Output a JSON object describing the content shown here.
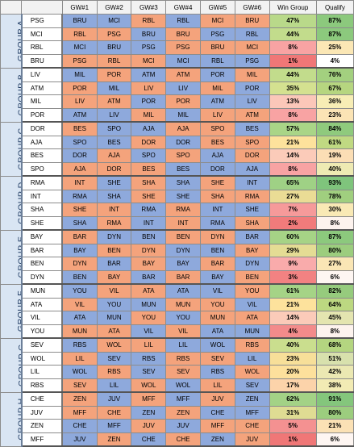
{
  "headers": [
    "GW#1",
    "GW#2",
    "GW#3",
    "GW#4",
    "GW#5",
    "GW#6",
    "Win Group",
    "Qualify"
  ],
  "colors": {
    "home": "#f4a37c",
    "away": "#8ea9dc",
    "header_bg": "#f2f2f2",
    "group_bg": "#d9e5f3"
  },
  "groups": [
    {
      "label": "GROUP A",
      "rows": [
        {
          "team": "PSG",
          "m": [
            [
              "BRU",
              "A"
            ],
            [
              "MCI",
              "A"
            ],
            [
              "RBL",
              "H"
            ],
            [
              "RBL",
              "A"
            ],
            [
              "MCI",
              "H"
            ],
            [
              "BRU",
              "H"
            ]
          ],
          "win": "47%",
          "win_c": "#b9d98a",
          "qual": "87%",
          "qual_c": "#8cc97d"
        },
        {
          "team": "MCI",
          "m": [
            [
              "RBL",
              "H"
            ],
            [
              "PSG",
              "H"
            ],
            [
              "BRU",
              "A"
            ],
            [
              "BRU",
              "H"
            ],
            [
              "PSG",
              "A"
            ],
            [
              "RBL",
              "A"
            ]
          ],
          "win": "44%",
          "win_c": "#c2dc8c",
          "qual": "87%",
          "qual_c": "#8cc97d"
        },
        {
          "team": "RBL",
          "m": [
            [
              "MCI",
              "A"
            ],
            [
              "BRU",
              "A"
            ],
            [
              "PSG",
              "A"
            ],
            [
              "PSG",
              "H"
            ],
            [
              "BRU",
              "H"
            ],
            [
              "MCI",
              "H"
            ]
          ],
          "win": "8%",
          "win_c": "#f8a3a3",
          "qual": "25%",
          "qual_c": "#fbe7b5"
        },
        {
          "team": "BRU",
          "m": [
            [
              "PSG",
              "H"
            ],
            [
              "RBL",
              "H"
            ],
            [
              "MCI",
              "H"
            ],
            [
              "MCI",
              "A"
            ],
            [
              "RBL",
              "A"
            ],
            [
              "PSG",
              "A"
            ]
          ],
          "win": "1%",
          "win_c": "#f07777",
          "qual": "4%",
          "qual_c": "#ffffff"
        }
      ]
    },
    {
      "label": "GROUP B",
      "rows": [
        {
          "team": "LIV",
          "m": [
            [
              "MIL",
              "A"
            ],
            [
              "POR",
              "H"
            ],
            [
              "ATM",
              "A"
            ],
            [
              "ATM",
              "H"
            ],
            [
              "POR",
              "A"
            ],
            [
              "MIL",
              "H"
            ]
          ],
          "win": "44%",
          "win_c": "#c2dc8c",
          "qual": "76%",
          "qual_c": "#a3d07f"
        },
        {
          "team": "ATM",
          "m": [
            [
              "POR",
              "H"
            ],
            [
              "MIL",
              "A"
            ],
            [
              "LIV",
              "H"
            ],
            [
              "LIV",
              "A"
            ],
            [
              "MIL",
              "H"
            ],
            [
              "POR",
              "A"
            ]
          ],
          "win": "35%",
          "win_c": "#d4e190",
          "qual": "67%",
          "qual_c": "#b6d680"
        },
        {
          "team": "MIL",
          "m": [
            [
              "LIV",
              "H"
            ],
            [
              "ATM",
              "H"
            ],
            [
              "POR",
              "A"
            ],
            [
              "POR",
              "H"
            ],
            [
              "ATM",
              "A"
            ],
            [
              "LIV",
              "A"
            ]
          ],
          "win": "13%",
          "win_c": "#fbc7b9",
          "qual": "36%",
          "qual_c": "#f7edb5"
        },
        {
          "team": "POR",
          "m": [
            [
              "ATM",
              "A"
            ],
            [
              "LIV",
              "A"
            ],
            [
              "MIL",
              "H"
            ],
            [
              "MIL",
              "A"
            ],
            [
              "LIV",
              "H"
            ],
            [
              "ATM",
              "H"
            ]
          ],
          "win": "8%",
          "win_c": "#f8a3a3",
          "qual": "23%",
          "qual_c": "#fbe4b5"
        }
      ]
    },
    {
      "label": "GROUP C",
      "rows": [
        {
          "team": "DOR",
          "m": [
            [
              "BES",
              "H"
            ],
            [
              "SPO",
              "A"
            ],
            [
              "AJA",
              "A"
            ],
            [
              "AJA",
              "H"
            ],
            [
              "SPO",
              "H"
            ],
            [
              "BES",
              "A"
            ]
          ],
          "win": "57%",
          "win_c": "#a9d587",
          "qual": "84%",
          "qual_c": "#8fca7d"
        },
        {
          "team": "AJA",
          "m": [
            [
              "SPO",
              "A"
            ],
            [
              "BES",
              "A"
            ],
            [
              "DOR",
              "H"
            ],
            [
              "DOR",
              "A"
            ],
            [
              "BES",
              "H"
            ],
            [
              "SPO",
              "H"
            ]
          ],
          "win": "21%",
          "win_c": "#fde29c",
          "qual": "61%",
          "qual_c": "#c0d982"
        },
        {
          "team": "BES",
          "m": [
            [
              "DOR",
              "A"
            ],
            [
              "AJA",
              "H"
            ],
            [
              "SPO",
              "A"
            ],
            [
              "SPO",
              "H"
            ],
            [
              "AJA",
              "A"
            ],
            [
              "DOR",
              "H"
            ]
          ],
          "win": "14%",
          "win_c": "#fbcbb9",
          "qual": "19%",
          "qual_c": "#fbdeb5"
        },
        {
          "team": "SPO",
          "m": [
            [
              "AJA",
              "H"
            ],
            [
              "DOR",
              "H"
            ],
            [
              "BES",
              "H"
            ],
            [
              "BES",
              "A"
            ],
            [
              "DOR",
              "A"
            ],
            [
              "AJA",
              "A"
            ]
          ],
          "win": "8%",
          "win_c": "#f8a3a3",
          "qual": "40%",
          "qual_c": "#eeeab3"
        }
      ]
    },
    {
      "label": "GROUP D",
      "rows": [
        {
          "team": "RMA",
          "m": [
            [
              "INT",
              "H"
            ],
            [
              "SHE",
              "A"
            ],
            [
              "SHA",
              "H"
            ],
            [
              "SHA",
              "A"
            ],
            [
              "SHE",
              "H"
            ],
            [
              "INT",
              "A"
            ]
          ],
          "win": "65%",
          "win_c": "#9fd185",
          "qual": "93%",
          "qual_c": "#7fc47c"
        },
        {
          "team": "INT",
          "m": [
            [
              "RMA",
              "A"
            ],
            [
              "SHA",
              "A"
            ],
            [
              "SHE",
              "H"
            ],
            [
              "SHE",
              "A"
            ],
            [
              "SHA",
              "H"
            ],
            [
              "RMA",
              "H"
            ]
          ],
          "win": "27%",
          "win_c": "#eadc95",
          "qual": "78%",
          "qual_c": "#a0cf7f"
        },
        {
          "team": "SHA",
          "m": [
            [
              "SHE",
              "H"
            ],
            [
              "INT",
              "H"
            ],
            [
              "RMA",
              "A"
            ],
            [
              "RMA",
              "H"
            ],
            [
              "INT",
              "A"
            ],
            [
              "SHE",
              "A"
            ]
          ],
          "win": "7%",
          "win_c": "#f69a9a",
          "qual": "30%",
          "qual_c": "#f9e9b5"
        },
        {
          "team": "SHE",
          "m": [
            [
              "SHA",
              "A"
            ],
            [
              "RMA",
              "H"
            ],
            [
              "INT",
              "A"
            ],
            [
              "INT",
              "H"
            ],
            [
              "RMA",
              "A"
            ],
            [
              "SHA",
              "H"
            ]
          ],
          "win": "2%",
          "win_c": "#f17b7b",
          "qual": "8%",
          "qual_c": "#fdf3ee"
        }
      ]
    },
    {
      "label": "GROUP E",
      "rows": [
        {
          "team": "BAY",
          "m": [
            [
              "BAR",
              "H"
            ],
            [
              "DYN",
              "A"
            ],
            [
              "BEN",
              "A"
            ],
            [
              "BEN",
              "H"
            ],
            [
              "DYN",
              "H"
            ],
            [
              "BAR",
              "A"
            ]
          ],
          "win": "60%",
          "win_c": "#a6d386",
          "qual": "87%",
          "qual_c": "#8cc97d"
        },
        {
          "team": "BAR",
          "m": [
            [
              "BAY",
              "A"
            ],
            [
              "BEN",
              "H"
            ],
            [
              "DYN",
              "H"
            ],
            [
              "DYN",
              "A"
            ],
            [
              "BEN",
              "A"
            ],
            [
              "BAY",
              "H"
            ]
          ],
          "win": "29%",
          "win_c": "#e4dc94",
          "qual": "80%",
          "qual_c": "#9ccd7e"
        },
        {
          "team": "BEN",
          "m": [
            [
              "DYN",
              "H"
            ],
            [
              "BAR",
              "A"
            ],
            [
              "BAY",
              "H"
            ],
            [
              "BAY",
              "A"
            ],
            [
              "BAR",
              "H"
            ],
            [
              "DYN",
              "A"
            ]
          ],
          "win": "9%",
          "win_c": "#f9abab",
          "qual": "27%",
          "qual_c": "#fae6b5"
        },
        {
          "team": "DYN",
          "m": [
            [
              "BEN",
              "A"
            ],
            [
              "BAY",
              "H"
            ],
            [
              "BAR",
              "A"
            ],
            [
              "BAR",
              "H"
            ],
            [
              "BAY",
              "A"
            ],
            [
              "BEN",
              "H"
            ]
          ],
          "win": "3%",
          "win_c": "#f28282",
          "qual": "6%",
          "qual_c": "#fef6f2"
        }
      ]
    },
    {
      "label": "GROUP F",
      "rows": [
        {
          "team": "MUN",
          "m": [
            [
              "YOU",
              "A"
            ],
            [
              "VIL",
              "H"
            ],
            [
              "ATA",
              "H"
            ],
            [
              "ATA",
              "A"
            ],
            [
              "VIL",
              "A"
            ],
            [
              "YOU",
              "H"
            ]
          ],
          "win": "61%",
          "win_c": "#a5d386",
          "qual": "82%",
          "qual_c": "#96cb7d"
        },
        {
          "team": "ATA",
          "m": [
            [
              "VIL",
              "H"
            ],
            [
              "YOU",
              "A"
            ],
            [
              "MUN",
              "A"
            ],
            [
              "MUN",
              "H"
            ],
            [
              "YOU",
              "H"
            ],
            [
              "VIL",
              "A"
            ]
          ],
          "win": "21%",
          "win_c": "#fde29c",
          "qual": "64%",
          "qual_c": "#bcd881"
        },
        {
          "team": "VIL",
          "m": [
            [
              "ATA",
              "A"
            ],
            [
              "MUN",
              "A"
            ],
            [
              "YOU",
              "H"
            ],
            [
              "YOU",
              "A"
            ],
            [
              "MUN",
              "H"
            ],
            [
              "ATA",
              "H"
            ]
          ],
          "win": "14%",
          "win_c": "#fbcbb9",
          "qual": "45%",
          "qual_c": "#e4e5b0"
        },
        {
          "team": "YOU",
          "m": [
            [
              "MUN",
              "H"
            ],
            [
              "ATA",
              "H"
            ],
            [
              "VIL",
              "A"
            ],
            [
              "VIL",
              "H"
            ],
            [
              "ATA",
              "A"
            ],
            [
              "MUN",
              "A"
            ]
          ],
          "win": "4%",
          "win_c": "#f38b8b",
          "qual": "8%",
          "qual_c": "#fdf3ee"
        }
      ]
    },
    {
      "label": "GROUP G",
      "rows": [
        {
          "team": "SEV",
          "m": [
            [
              "RBS",
              "A"
            ],
            [
              "WOL",
              "H"
            ],
            [
              "LIL",
              "H"
            ],
            [
              "LIL",
              "A"
            ],
            [
              "WOL",
              "A"
            ],
            [
              "RBS",
              "H"
            ]
          ],
          "win": "40%",
          "win_c": "#cade8e",
          "qual": "68%",
          "qual_c": "#b4d580"
        },
        {
          "team": "WOL",
          "m": [
            [
              "LIL",
              "H"
            ],
            [
              "SEV",
              "A"
            ],
            [
              "RBS",
              "A"
            ],
            [
              "RBS",
              "H"
            ],
            [
              "SEV",
              "H"
            ],
            [
              "LIL",
              "A"
            ]
          ],
          "win": "23%",
          "win_c": "#f7df99",
          "qual": "51%",
          "qual_c": "#d8e1ad"
        },
        {
          "team": "LIL",
          "m": [
            [
              "WOL",
              "A"
            ],
            [
              "RBS",
              "H"
            ],
            [
              "SEV",
              "A"
            ],
            [
              "SEV",
              "H"
            ],
            [
              "RBS",
              "A"
            ],
            [
              "WOL",
              "H"
            ]
          ],
          "win": "20%",
          "win_c": "#fde09c",
          "qual": "42%",
          "qual_c": "#ebe8b2"
        },
        {
          "team": "RBS",
          "m": [
            [
              "SEV",
              "H"
            ],
            [
              "LIL",
              "A"
            ],
            [
              "WOL",
              "H"
            ],
            [
              "WOL",
              "A"
            ],
            [
              "LIL",
              "H"
            ],
            [
              "SEV",
              "A"
            ]
          ],
          "win": "17%",
          "win_c": "#fcd3aa",
          "qual": "38%",
          "qual_c": "#f2ebb4"
        }
      ]
    },
    {
      "label": "GROUP H",
      "rows": [
        {
          "team": "CHE",
          "m": [
            [
              "ZEN",
              "H"
            ],
            [
              "JUV",
              "A"
            ],
            [
              "MFF",
              "H"
            ],
            [
              "MFF",
              "A"
            ],
            [
              "JUV",
              "H"
            ],
            [
              "ZEN",
              "A"
            ]
          ],
          "win": "62%",
          "win_c": "#a3d286",
          "qual": "91%",
          "qual_c": "#84c67c"
        },
        {
          "team": "JUV",
          "m": [
            [
              "MFF",
              "H"
            ],
            [
              "CHE",
              "H"
            ],
            [
              "ZEN",
              "A"
            ],
            [
              "ZEN",
              "H"
            ],
            [
              "CHE",
              "A"
            ],
            [
              "MFF",
              "A"
            ]
          ],
          "win": "31%",
          "win_c": "#dfdc93",
          "qual": "80%",
          "qual_c": "#9ccd7e"
        },
        {
          "team": "ZEN",
          "m": [
            [
              "CHE",
              "A"
            ],
            [
              "MFF",
              "A"
            ],
            [
              "JUV",
              "H"
            ],
            [
              "JUV",
              "A"
            ],
            [
              "MFF",
              "H"
            ],
            [
              "CHE",
              "H"
            ]
          ],
          "win": "5%",
          "win_c": "#f49191",
          "qual": "21%",
          "qual_c": "#fbe1b5"
        },
        {
          "team": "MFF",
          "m": [
            [
              "JUV",
              "A"
            ],
            [
              "ZEN",
              "H"
            ],
            [
              "CHE",
              "A"
            ],
            [
              "CHE",
              "H"
            ],
            [
              "ZEN",
              "A"
            ],
            [
              "JUV",
              "H"
            ]
          ],
          "win": "1%",
          "win_c": "#f07777",
          "qual": "6%",
          "qual_c": "#fef6f2"
        }
      ]
    }
  ]
}
